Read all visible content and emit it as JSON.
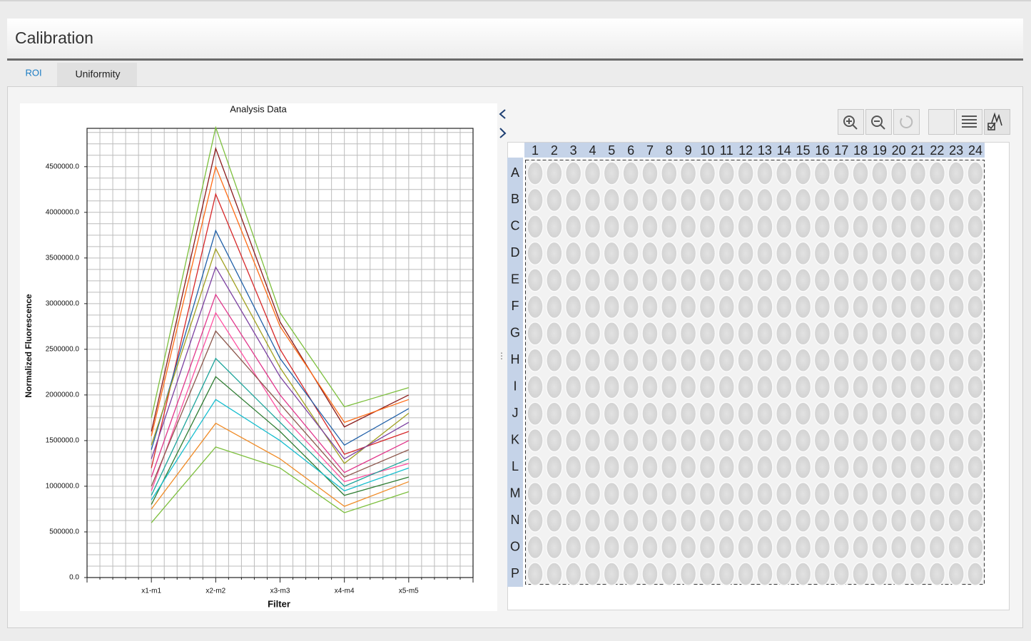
{
  "header": {
    "title": "Calibration"
  },
  "tabs": [
    "ROI",
    "Uniformity"
  ],
  "chart_data": {
    "type": "line",
    "title": "Analysis Data",
    "x_label": "Filter",
    "y_label": "Normalized Fluorescence",
    "categories": [
      "x1-m1",
      "x2-m2",
      "x3-m3",
      "x4-m4",
      "x5-m5"
    ],
    "ylim": [
      0,
      4920000
    ],
    "yticks": [
      {
        "value": 0,
        "label": "0.0"
      },
      {
        "value": 500000,
        "label": "500000.0"
      },
      {
        "value": 1000000,
        "label": "1000000.0"
      },
      {
        "value": 1500000,
        "label": "1500000.0"
      },
      {
        "value": 2000000,
        "label": "2000000.0"
      },
      {
        "value": 2500000,
        "label": "2500000.0"
      },
      {
        "value": 3000000,
        "label": "3000000.0"
      },
      {
        "value": 3500000,
        "label": "3500000.0"
      },
      {
        "value": 4000000,
        "label": "4000000.0"
      },
      {
        "value": 4500000,
        "label": "4500000.0"
      }
    ],
    "grid": true,
    "series": [
      {
        "color": "#7cbf3c",
        "values": [
          1750000,
          4930000,
          2900000,
          1870000,
          2080000
        ]
      },
      {
        "color": "#8b1a1a",
        "values": [
          1600000,
          4700000,
          2800000,
          1650000,
          2000000
        ]
      },
      {
        "color": "#ff6a13",
        "values": [
          1550000,
          4500000,
          2750000,
          1700000,
          1950000
        ]
      },
      {
        "color": "#d62728",
        "values": [
          1200000,
          4200000,
          2500000,
          1350000,
          1600000
        ]
      },
      {
        "color": "#1f5fa8",
        "values": [
          1400000,
          3800000,
          2400000,
          1450000,
          1850000
        ]
      },
      {
        "color": "#a0a020",
        "values": [
          1450000,
          3600000,
          2300000,
          1250000,
          1800000
        ]
      },
      {
        "color": "#7b3fa0",
        "values": [
          1300000,
          3400000,
          2200000,
          1300000,
          1700000
        ]
      },
      {
        "color": "#e0358a",
        "values": [
          1100000,
          3100000,
          2000000,
          1150000,
          1500000
        ]
      },
      {
        "color": "#ff4fa0",
        "values": [
          950000,
          2900000,
          1800000,
          1050000,
          1250000
        ]
      },
      {
        "color": "#8c564b",
        "values": [
          1000000,
          2700000,
          1900000,
          1100000,
          1400000
        ]
      },
      {
        "color": "#1aa39a",
        "values": [
          900000,
          2400000,
          1700000,
          1000000,
          1300000
        ]
      },
      {
        "color": "#2e7d32",
        "values": [
          800000,
          2200000,
          1600000,
          900000,
          1100000
        ]
      },
      {
        "color": "#17becf",
        "values": [
          850000,
          1950000,
          1500000,
          950000,
          1200000
        ]
      },
      {
        "color": "#f08a24",
        "values": [
          750000,
          1690000,
          1300000,
          780000,
          1050000
        ]
      },
      {
        "color": "#7cbf3c",
        "values": [
          600000,
          1430000,
          1200000,
          710000,
          940000
        ]
      }
    ]
  },
  "plate": {
    "columns": [
      "1",
      "2",
      "3",
      "4",
      "5",
      "6",
      "7",
      "8",
      "9",
      "10",
      "11",
      "12",
      "13",
      "14",
      "15",
      "16",
      "17",
      "18",
      "19",
      "20",
      "21",
      "22",
      "23",
      "24"
    ],
    "rows": [
      "A",
      "B",
      "C",
      "D",
      "E",
      "F",
      "G",
      "H",
      "I",
      "J",
      "K",
      "L",
      "M",
      "N",
      "O",
      "P"
    ]
  }
}
